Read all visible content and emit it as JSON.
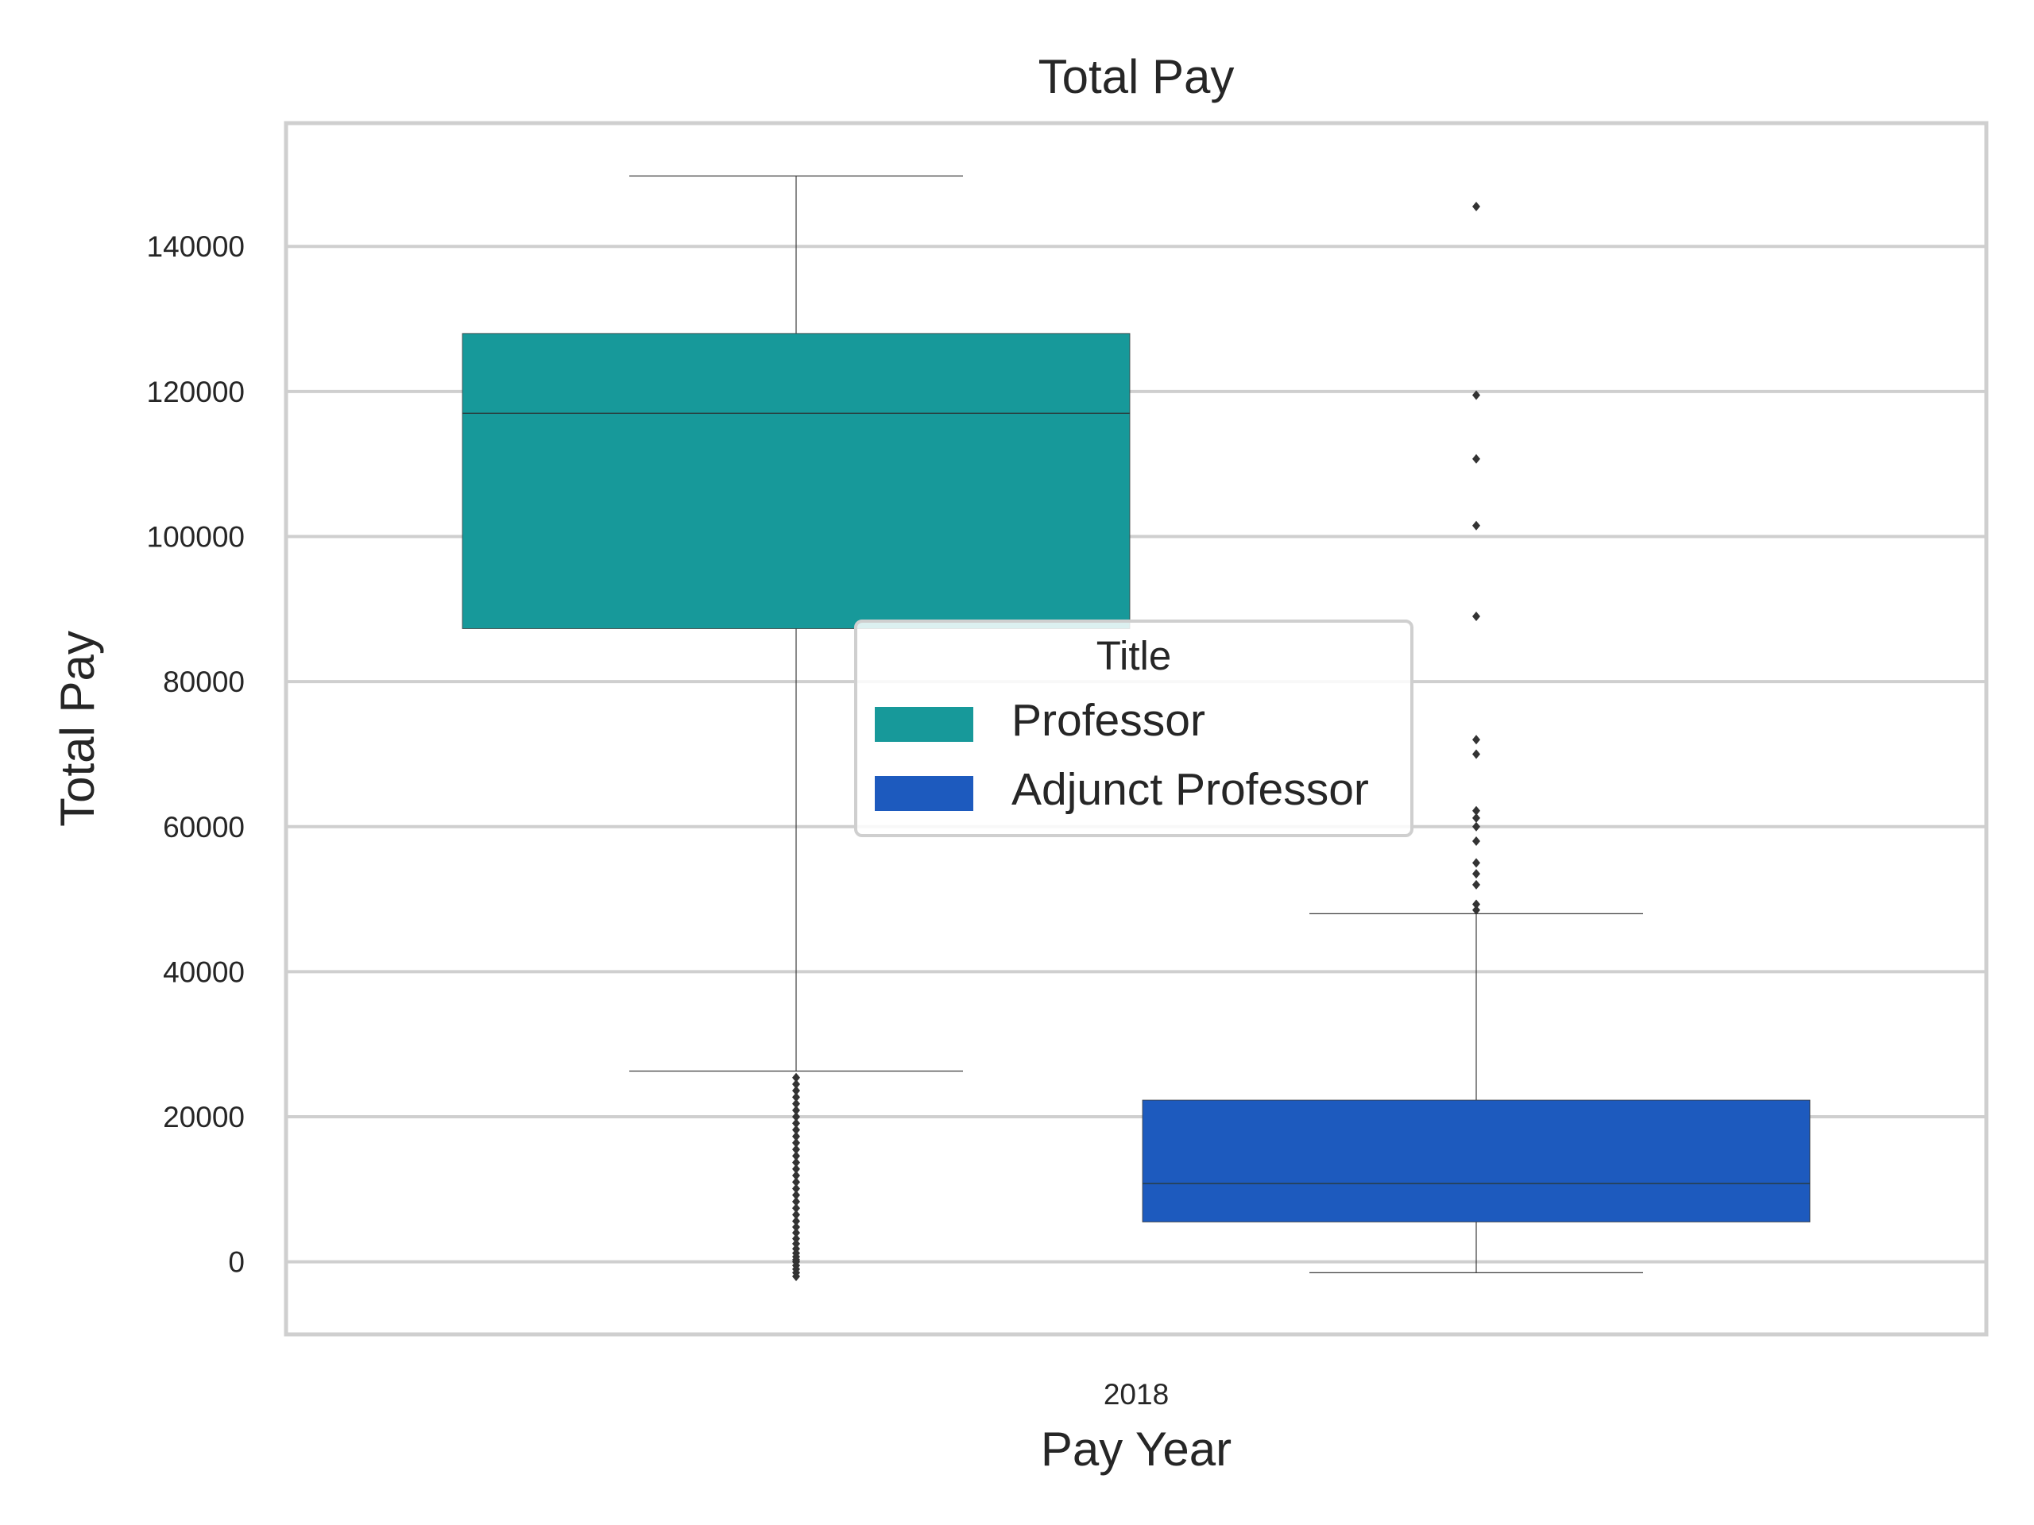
{
  "chart_data": {
    "type": "box",
    "title": "Total Pay",
    "xlabel": "Pay Year",
    "ylabel": "Total Pay",
    "categories": [
      "2018"
    ],
    "ylim": [
      -10000,
      157000
    ],
    "yticks": [
      0,
      20000,
      40000,
      60000,
      80000,
      100000,
      120000,
      140000
    ],
    "ytick_labels": [
      "0",
      "20000",
      "40000",
      "60000",
      "80000",
      "100000",
      "120000",
      "140000"
    ],
    "grid": true,
    "legend": {
      "title": "Title",
      "placement": "center",
      "entries": [
        "Professor",
        "Adjunct Professor"
      ]
    },
    "series": [
      {
        "name": "Professor",
        "color": "#17999A",
        "whisker_low": 26300,
        "q1": 87300,
        "median": 117000,
        "q3": 128000,
        "whisker_high": 149700,
        "outliers": [
          -2000,
          -1500,
          -1000,
          -500,
          0,
          300,
          700,
          1200,
          1800,
          2500,
          3200,
          4000,
          4800,
          5600,
          6500,
          7400,
          8300,
          9200,
          10100,
          11000,
          11900,
          12800,
          13700,
          14600,
          15500,
          16400,
          17300,
          18200,
          19100,
          20000,
          20900,
          21800,
          22700,
          23600,
          24500,
          25400
        ]
      },
      {
        "name": "Adjunct Professor",
        "color": "#1D5ABE",
        "whisker_low": -1500,
        "q1": 5500,
        "median": 10800,
        "q3": 22300,
        "whisker_high": 48000,
        "outliers": [
          48500,
          49300,
          52000,
          53500,
          55000,
          58000,
          60000,
          61200,
          62200,
          70000,
          72000,
          89000,
          101500,
          110700,
          119500,
          145500
        ]
      }
    ]
  }
}
